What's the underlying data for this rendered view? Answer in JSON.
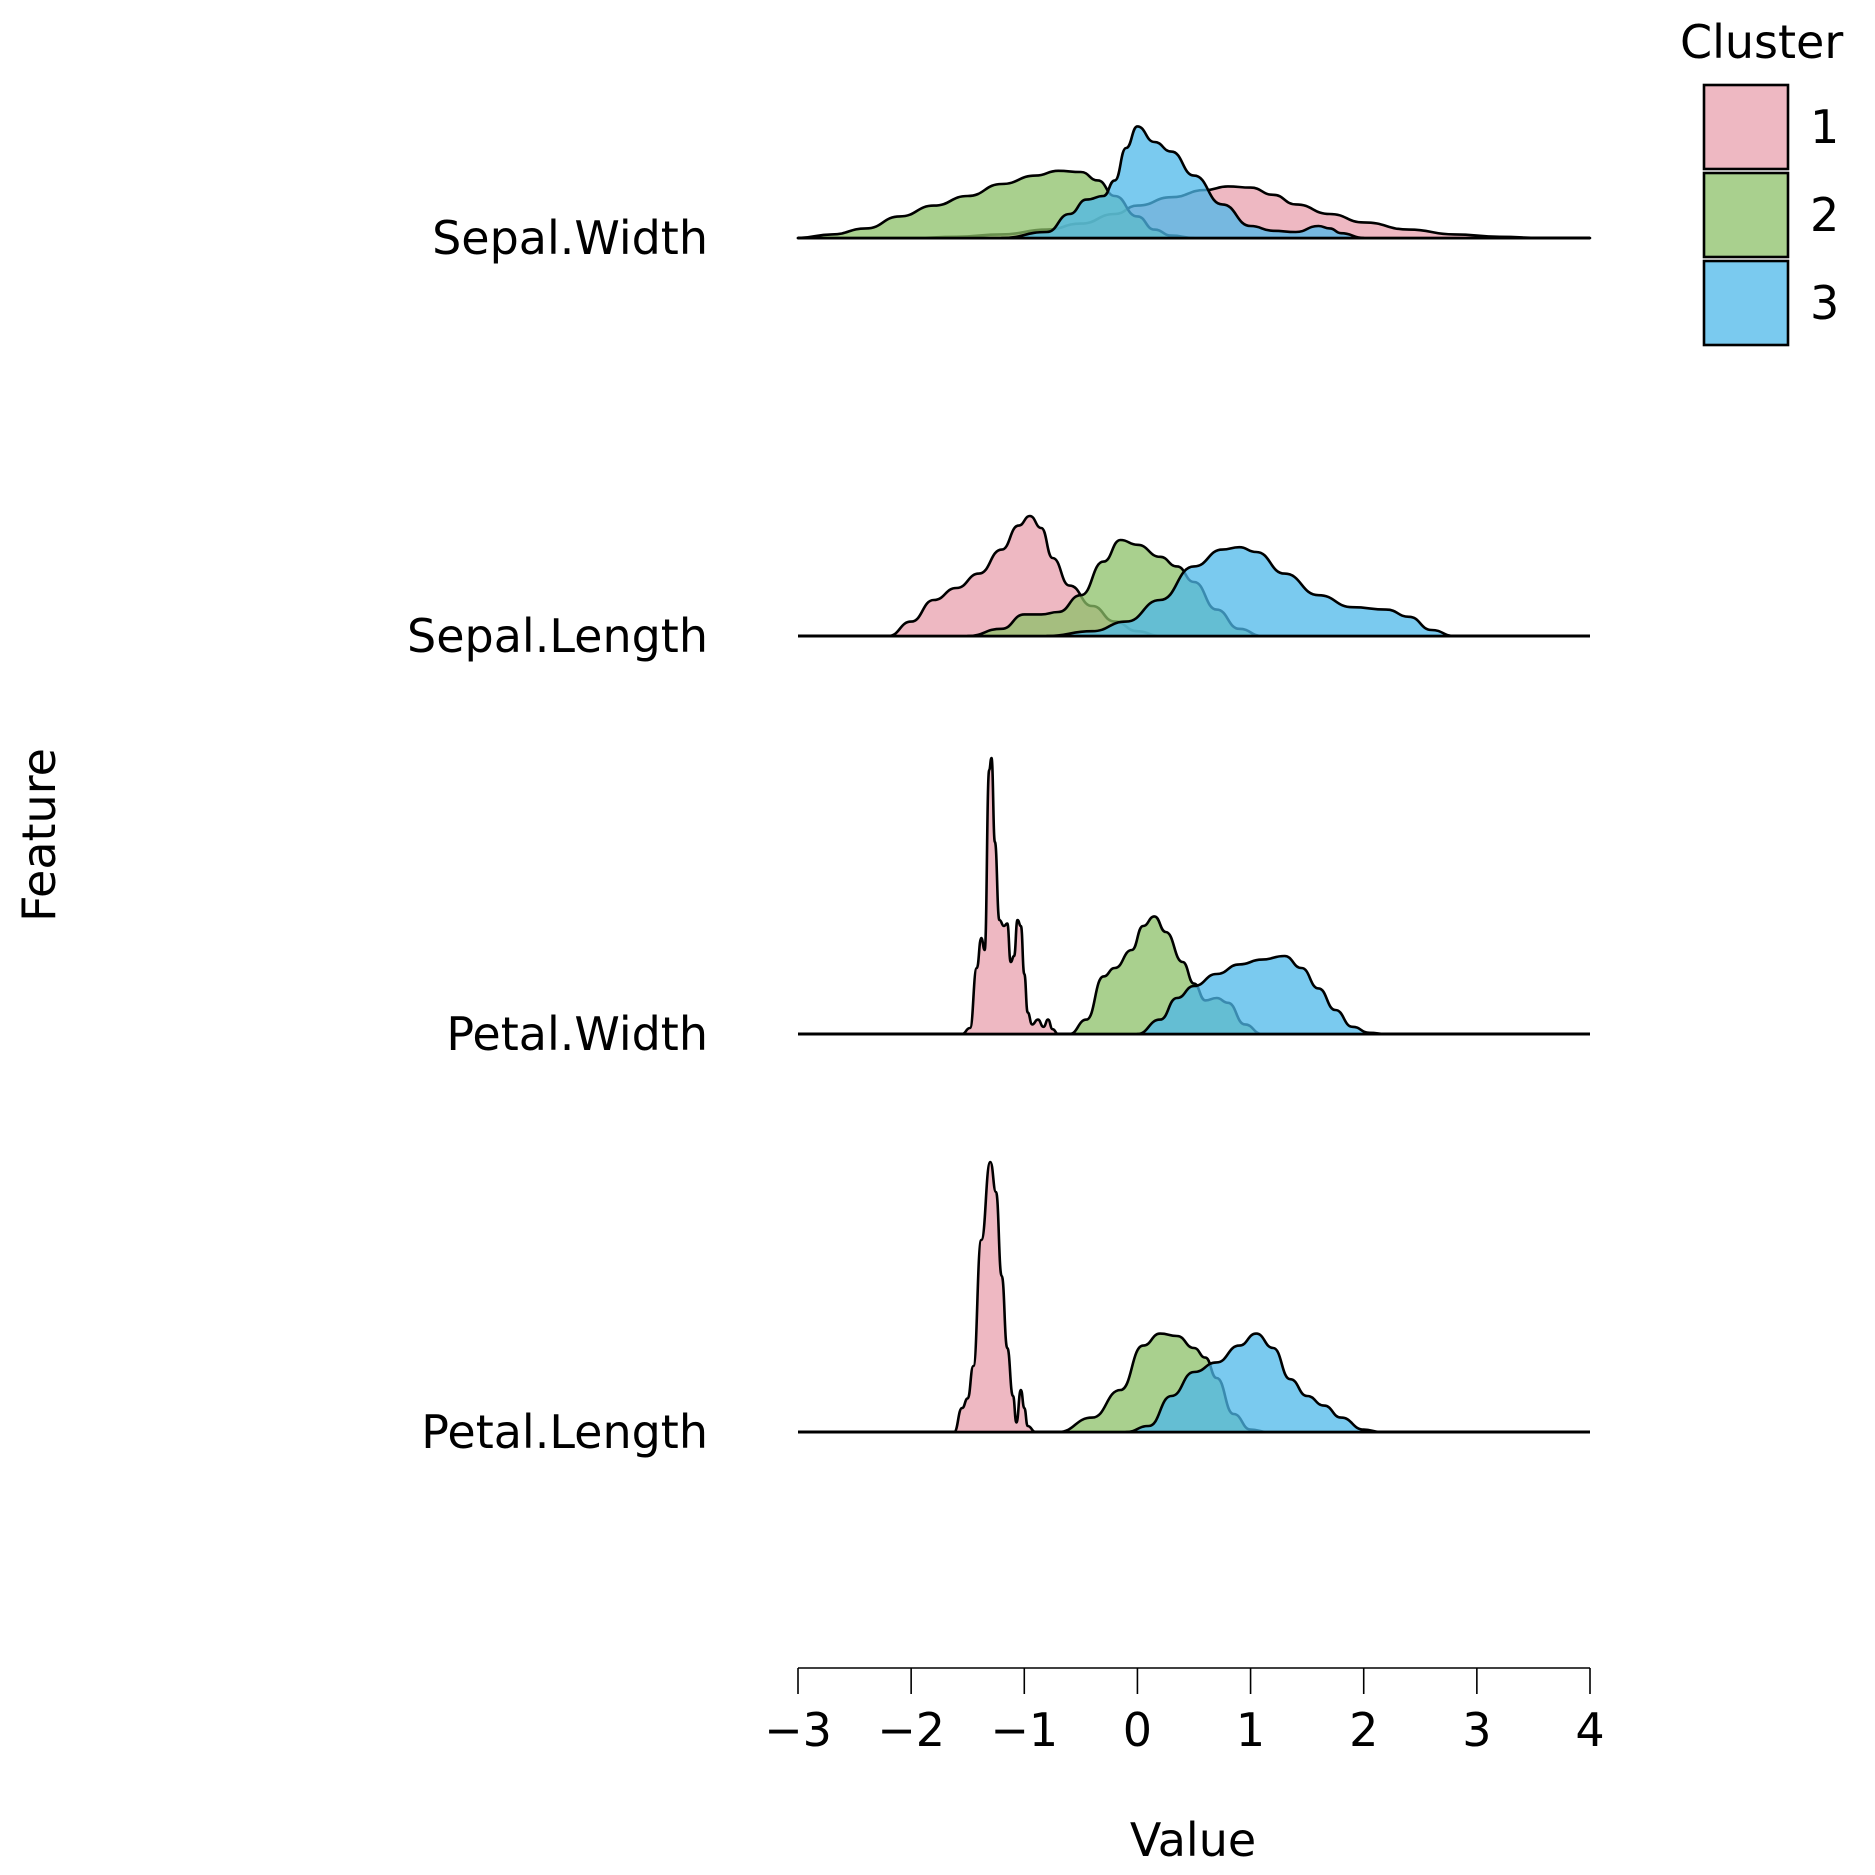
{
  "chart_data": {
    "type": "ridgeline",
    "xlabel": "Value",
    "ylabel": "Feature",
    "xlim": [
      -3,
      4
    ],
    "xticks": [
      -3,
      -2,
      -1,
      0,
      1,
      2,
      3,
      4
    ],
    "xtick_labels": [
      "−3",
      "−2",
      "−1",
      "0",
      "1",
      "2",
      "3",
      "4"
    ],
    "grid": false,
    "legend": {
      "title": "Cluster",
      "placement": "top-right",
      "entries": [
        {
          "label": "1",
          "color": "#E8A0AE"
        },
        {
          "label": "2",
          "color": "#8CC068"
        },
        {
          "label": "3",
          "color": "#4DB8EA"
        }
      ]
    },
    "rows": [
      {
        "feature": "Sepal.Width",
        "densities": [
          {
            "cluster": "1",
            "x": [
              -3.0,
              -2.0,
              -1.6,
              -1.2,
              -0.8,
              -0.5,
              -0.2,
              0.0,
              0.3,
              0.6,
              0.8,
              1.0,
              1.2,
              1.4,
              1.7,
              2.0,
              2.4,
              2.8,
              3.2,
              3.6,
              4.0
            ],
            "y": [
              0.0,
              0.0,
              0.01,
              0.03,
              0.07,
              0.12,
              0.2,
              0.27,
              0.34,
              0.4,
              0.43,
              0.42,
              0.36,
              0.28,
              0.2,
              0.13,
              0.07,
              0.03,
              0.01,
              0.0,
              0.0
            ]
          },
          {
            "cluster": "2",
            "x": [
              -3.0,
              -2.7,
              -2.4,
              -2.1,
              -1.8,
              -1.5,
              -1.2,
              -0.9,
              -0.7,
              -0.5,
              -0.35,
              -0.2,
              0.0,
              0.15,
              0.3,
              0.5
            ],
            "y": [
              0.0,
              0.03,
              0.08,
              0.18,
              0.27,
              0.35,
              0.45,
              0.52,
              0.56,
              0.55,
              0.48,
              0.35,
              0.18,
              0.07,
              0.02,
              0.0
            ]
          },
          {
            "cluster": "3",
            "x": [
              -1.2,
              -0.8,
              -0.6,
              -0.45,
              -0.3,
              -0.2,
              -0.1,
              0.0,
              0.15,
              0.3,
              0.5,
              0.75,
              1.0,
              1.2,
              1.4,
              1.6,
              1.7,
              1.8,
              2.0
            ],
            "y": [
              0.0,
              0.05,
              0.2,
              0.32,
              0.35,
              0.48,
              0.75,
              0.93,
              0.8,
              0.72,
              0.52,
              0.28,
              0.1,
              0.06,
              0.05,
              0.1,
              0.08,
              0.04,
              0.0
            ]
          }
        ]
      },
      {
        "feature": "Sepal.Length",
        "densities": [
          {
            "cluster": "1",
            "x": [
              -2.2,
              -2.0,
              -1.8,
              -1.6,
              -1.4,
              -1.2,
              -1.05,
              -0.95,
              -0.85,
              -0.75,
              -0.6,
              -0.4,
              -0.2,
              0.0,
              0.2
            ],
            "y": [
              0.0,
              0.12,
              0.3,
              0.4,
              0.52,
              0.72,
              0.92,
              1.0,
              0.9,
              0.65,
              0.42,
              0.25,
              0.12,
              0.04,
              0.0
            ]
          },
          {
            "cluster": "2",
            "x": [
              -1.5,
              -1.2,
              -1.0,
              -0.85,
              -0.7,
              -0.5,
              -0.3,
              -0.15,
              0.0,
              0.2,
              0.35,
              0.5,
              0.7,
              0.9,
              1.1
            ],
            "y": [
              0.0,
              0.06,
              0.18,
              0.18,
              0.2,
              0.34,
              0.62,
              0.8,
              0.76,
              0.66,
              0.58,
              0.45,
              0.22,
              0.06,
              0.0
            ]
          },
          {
            "cluster": "3",
            "x": [
              -0.8,
              -0.4,
              -0.1,
              0.2,
              0.5,
              0.75,
              0.9,
              1.05,
              1.3,
              1.6,
              1.9,
              2.2,
              2.4,
              2.6,
              2.8
            ],
            "y": [
              0.0,
              0.04,
              0.12,
              0.3,
              0.58,
              0.72,
              0.74,
              0.7,
              0.52,
              0.34,
              0.24,
              0.22,
              0.16,
              0.05,
              0.0
            ]
          }
        ]
      },
      {
        "feature": "Petal.Width",
        "densities": [
          {
            "cluster": "1",
            "x": [
              -1.55,
              -1.48,
              -1.42,
              -1.38,
              -1.35,
              -1.31,
              -1.29,
              -1.26,
              -1.22,
              -1.18,
              -1.15,
              -1.12,
              -1.09,
              -1.06,
              -1.03,
              -1.0,
              -0.97,
              -0.93,
              -0.88,
              -0.83,
              -0.79,
              -0.75,
              -0.7
            ],
            "y": [
              0.0,
              0.05,
              0.55,
              0.8,
              0.7,
              2.2,
              2.3,
              1.6,
              0.95,
              0.9,
              0.92,
              0.6,
              0.65,
              0.95,
              0.9,
              0.5,
              0.18,
              0.08,
              0.12,
              0.06,
              0.12,
              0.04,
              0.0
            ]
          },
          {
            "cluster": "2",
            "x": [
              -0.6,
              -0.45,
              -0.3,
              -0.2,
              -0.05,
              0.05,
              0.15,
              0.25,
              0.4,
              0.5,
              0.6,
              0.7,
              0.8,
              0.95,
              1.1
            ],
            "y": [
              0.0,
              0.12,
              0.48,
              0.55,
              0.7,
              0.9,
              0.98,
              0.85,
              0.6,
              0.42,
              0.28,
              0.3,
              0.26,
              0.08,
              0.0
            ]
          },
          {
            "cluster": "3",
            "x": [
              0.0,
              0.2,
              0.35,
              0.5,
              0.7,
              0.9,
              1.1,
              1.3,
              1.45,
              1.6,
              1.75,
              1.9,
              2.05,
              2.2
            ],
            "y": [
              0.0,
              0.12,
              0.3,
              0.4,
              0.5,
              0.58,
              0.62,
              0.65,
              0.55,
              0.38,
              0.2,
              0.06,
              0.01,
              0.0
            ]
          }
        ]
      },
      {
        "feature": "Petal.Length",
        "densities": [
          {
            "cluster": "1",
            "x": [
              -1.62,
              -1.55,
              -1.5,
              -1.45,
              -1.38,
              -1.3,
              -1.25,
              -1.2,
              -1.15,
              -1.1,
              -1.07,
              -1.03,
              -1.0,
              -0.97,
              -0.9,
              -0.8
            ],
            "y": [
              0.0,
              0.2,
              0.28,
              0.55,
              1.6,
              2.25,
              2.0,
              1.3,
              0.7,
              0.3,
              0.08,
              0.35,
              0.2,
              0.05,
              0.0,
              0.0
            ]
          },
          {
            "cluster": "2",
            "x": [
              -0.7,
              -0.4,
              -0.15,
              0.05,
              0.2,
              0.35,
              0.5,
              0.6,
              0.7,
              0.85,
              1.0,
              1.15
            ],
            "y": [
              0.0,
              0.12,
              0.35,
              0.72,
              0.82,
              0.8,
              0.7,
              0.62,
              0.45,
              0.15,
              0.02,
              0.0
            ]
          },
          {
            "cluster": "3",
            "x": [
              -0.1,
              0.1,
              0.3,
              0.5,
              0.7,
              0.9,
              1.05,
              1.2,
              1.35,
              1.5,
              1.65,
              1.8,
              2.0,
              2.15
            ],
            "y": [
              0.0,
              0.05,
              0.3,
              0.5,
              0.58,
              0.72,
              0.82,
              0.7,
              0.44,
              0.3,
              0.22,
              0.12,
              0.02,
              0.0
            ]
          }
        ]
      }
    ]
  }
}
